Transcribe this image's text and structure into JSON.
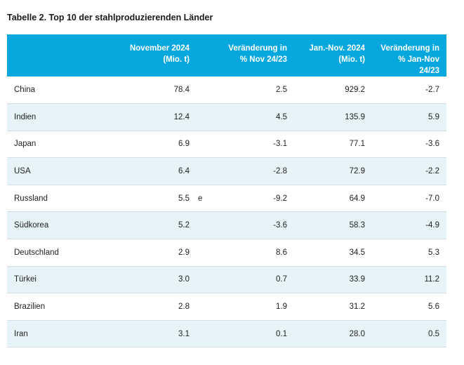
{
  "caption": "Tabelle 2. Top 10 der stahlproduzierenden Länder",
  "table": {
    "headers": {
      "country": "",
      "nov_2024": "November 2024 (Mio. t)",
      "flag": "",
      "change_nov": "Veränderung in % Nov 24/23",
      "jan_nov_2024": "Jan.-Nov. 2024 (Mio. t)",
      "change_jan_nov": "Veränderung in % Jan-Nov 24/23"
    },
    "rows": [
      {
        "country": "China",
        "nov": "78.4",
        "flag": "",
        "change_nov": "2.5",
        "jan_nov": "929.2",
        "change_jan_nov": "-2.7"
      },
      {
        "country": "Indien",
        "nov": "12.4",
        "flag": "",
        "change_nov": "4.5",
        "jan_nov": "135.9",
        "change_jan_nov": "5.9"
      },
      {
        "country": "Japan",
        "nov": "6.9",
        "flag": "",
        "change_nov": "-3.1",
        "jan_nov": "77.1",
        "change_jan_nov": "-3.6"
      },
      {
        "country": "USA",
        "nov": "6.4",
        "flag": "",
        "change_nov": "-2.8",
        "jan_nov": "72.9",
        "change_jan_nov": "-2.2"
      },
      {
        "country": "Russland",
        "nov": "5.5",
        "flag": "e",
        "change_nov": "-9.2",
        "jan_nov": "64.9",
        "change_jan_nov": "-7.0"
      },
      {
        "country": "Südkorea",
        "nov": "5.2",
        "flag": "",
        "change_nov": "-3.6",
        "jan_nov": "58.3",
        "change_jan_nov": "-4.9"
      },
      {
        "country": "Deutschland",
        "nov": "2.9",
        "flag": "",
        "change_nov": "8.6",
        "jan_nov": "34.5",
        "change_jan_nov": "5.3"
      },
      {
        "country": "Türkei",
        "nov": "3.0",
        "flag": "",
        "change_nov": "0.7",
        "jan_nov": "33.9",
        "change_jan_nov": "11.2"
      },
      {
        "country": "Brazilien",
        "nov": "2.8",
        "flag": "",
        "change_nov": "1.9",
        "jan_nov": "31.2",
        "change_jan_nov": "5.6"
      },
      {
        "country": "Iran",
        "nov": "3.1",
        "flag": "",
        "change_nov": "0.1",
        "jan_nov": "28.0",
        "change_jan_nov": "0.5"
      }
    ]
  },
  "colors": {
    "header_bg": "#08a8df",
    "header_text": "#ffffff",
    "zebra_row": "#e6f4fa"
  }
}
